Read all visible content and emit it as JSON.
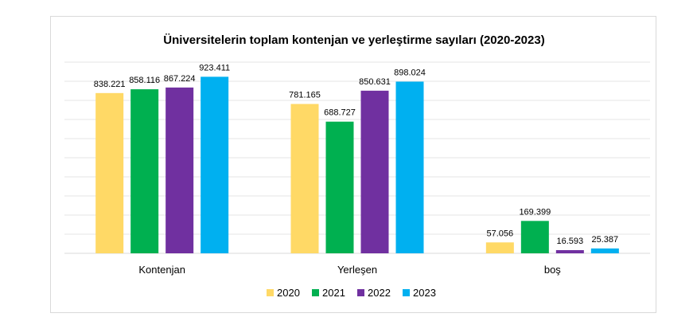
{
  "chart_data": {
    "type": "bar",
    "title": "Üniversitelerin toplam kontenjan ve yerleştirme sayıları (2020-2023)",
    "xlabel": "",
    "ylabel": "",
    "categories": [
      "Kontenjan",
      "Yerleşen",
      "boş"
    ],
    "series": [
      {
        "name": "2020",
        "color": "#FFD966",
        "values": [
          838221,
          781165,
          57056
        ],
        "labels": [
          "838.221",
          "781.165",
          "57.056"
        ]
      },
      {
        "name": "2021",
        "color": "#00B050",
        "values": [
          858116,
          688727,
          169399
        ],
        "labels": [
          "858.116",
          "688.727",
          "169.399"
        ]
      },
      {
        "name": "2022",
        "color": "#7030A0",
        "values": [
          867224,
          850631,
          16593
        ],
        "labels": [
          "867.224",
          "850.631",
          "16.593"
        ]
      },
      {
        "name": "2023",
        "color": "#00B0F0",
        "values": [
          923411,
          898024,
          25387
        ],
        "labels": [
          "923.411",
          "898.024",
          "25.387"
        ]
      }
    ],
    "ylim": [
      0,
      1000000
    ],
    "gridlines": true,
    "y_tick_labels_visible": false,
    "legend_position": "bottom"
  }
}
